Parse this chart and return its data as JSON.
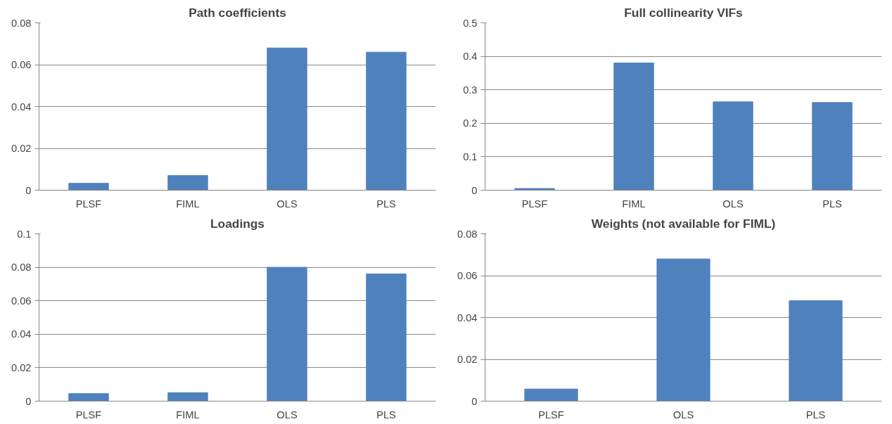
{
  "chart_data": [
    {
      "type": "bar",
      "title": "Path coefficients",
      "categories": [
        "PLSF",
        "FIML",
        "OLS",
        "PLS"
      ],
      "values": [
        0.0033,
        0.007,
        0.068,
        0.066
      ],
      "color": "#4f81bd",
      "ylim": [
        0,
        0.08
      ],
      "yticks": [
        0,
        0.02,
        0.04,
        0.06,
        0.08
      ],
      "grid": "y"
    },
    {
      "type": "bar",
      "title": "Full collinearity VIFs",
      "categories": [
        "PLSF",
        "FIML",
        "OLS",
        "PLS"
      ],
      "values": [
        0.005,
        0.38,
        0.264,
        0.262
      ],
      "color": "#4f81bd",
      "ylim": [
        0,
        0.5
      ],
      "yticks": [
        0,
        0.1,
        0.2,
        0.3,
        0.4,
        0.5
      ],
      "grid": "y"
    },
    {
      "type": "bar",
      "title": "Loadings",
      "categories": [
        "PLSF",
        "FIML",
        "OLS",
        "PLS"
      ],
      "values": [
        0.0045,
        0.005,
        0.08,
        0.076
      ],
      "color": "#4f81bd",
      "ylim": [
        0,
        0.1
      ],
      "yticks": [
        0,
        0.02,
        0.04,
        0.06,
        0.08,
        0.1
      ],
      "grid": "y"
    },
    {
      "type": "bar",
      "title": "Weights (not available for FIML)",
      "categories": [
        "PLSF",
        "OLS",
        "PLS"
      ],
      "values": [
        0.0058,
        0.068,
        0.048
      ],
      "color": "#4f81bd",
      "ylim": [
        0,
        0.08
      ],
      "yticks": [
        0,
        0.02,
        0.04,
        0.06,
        0.08
      ],
      "grid": "y"
    }
  ]
}
